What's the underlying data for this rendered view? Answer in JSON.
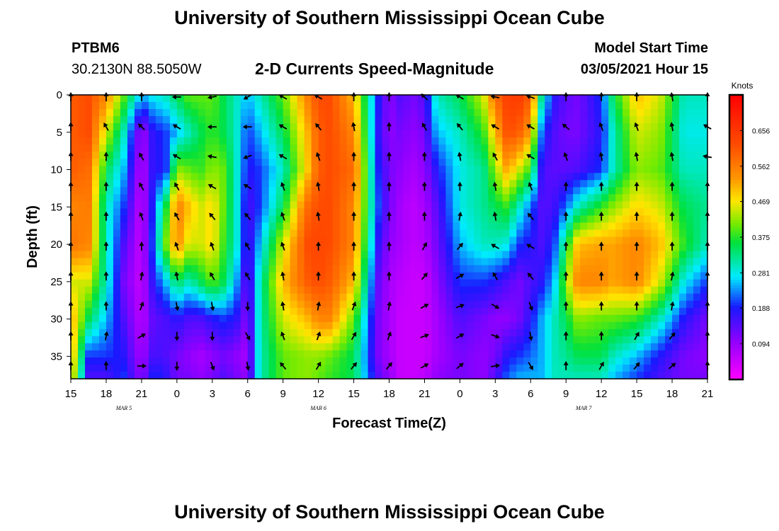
{
  "header": {
    "title": "University of Southern Mississippi Ocean Cube",
    "station": "PTBM6",
    "coordinates": "30.2130N 88.5050W",
    "subtitle": "2-D Currents Speed-Magnitude",
    "start_label": "Model Start Time",
    "start_value": "03/05/2021 Hour 15"
  },
  "footer": {
    "title": "University of Southern Mississippi Ocean Cube"
  },
  "chart_data": {
    "type": "heatmap",
    "title": "2-D Currents Speed-Magnitude",
    "xlabel": "Forecast Time(Z)",
    "ylabel": "Depth (ft)",
    "x_ticks": [
      "15",
      "18",
      "21",
      "0",
      "3",
      "6",
      "9",
      "12",
      "15",
      "18",
      "21",
      "0",
      "3",
      "6",
      "9",
      "12",
      "15",
      "18",
      "21"
    ],
    "x_range_hours": [
      0,
      54
    ],
    "date_labels": [
      {
        "hour": 4.5,
        "label": "MAR 5"
      },
      {
        "hour": 21,
        "label": "MAR 6"
      },
      {
        "hour": 43.5,
        "label": "MAR 7"
      }
    ],
    "y_ticks": [
      0,
      5,
      10,
      15,
      20,
      25,
      30,
      35
    ],
    "y_range_ft": [
      0,
      38
    ],
    "colorbar": {
      "unit": "Knots",
      "range": [
        0,
        0.75
      ],
      "ticks": [
        "0.656",
        "0.562",
        "0.469",
        "0.375",
        "0.281",
        "0.188",
        "0.094"
      ],
      "tick_values": [
        0.656,
        0.562,
        0.469,
        0.375,
        0.281,
        0.188,
        0.094
      ]
    },
    "speed_field": {
      "x_hours": [
        0,
        1.5,
        3,
        4.5,
        6,
        7,
        8,
        9,
        10,
        11,
        12,
        13,
        14,
        15,
        16,
        18,
        20,
        21,
        22,
        24,
        26,
        27,
        28,
        29,
        30,
        31,
        33,
        35,
        36,
        37,
        38,
        39,
        40,
        41,
        42,
        43,
        45,
        46,
        48,
        50,
        52,
        54
      ],
      "depth_ft": [
        0,
        5,
        10,
        15,
        20,
        25,
        30,
        35,
        38
      ],
      "values": [
        [
          0.6,
          0.6,
          0.6,
          0.55,
          0.57,
          0.45,
          0.52,
          0.52,
          0.5
        ],
        [
          0.62,
          0.62,
          0.58,
          0.56,
          0.55,
          0.45,
          0.35,
          0.2,
          0.15
        ],
        [
          0.55,
          0.45,
          0.35,
          0.3,
          0.3,
          0.3,
          0.25,
          0.2,
          0.15
        ],
        [
          0.4,
          0.3,
          0.25,
          0.2,
          0.15,
          0.12,
          0.15,
          0.18,
          0.2
        ],
        [
          0.25,
          0.08,
          0.06,
          0.05,
          0.05,
          0.05,
          0.06,
          0.08,
          0.1
        ],
        [
          0.28,
          0.18,
          0.18,
          0.2,
          0.22,
          0.18,
          0.14,
          0.16,
          0.2
        ],
        [
          0.3,
          0.2,
          0.18,
          0.35,
          0.4,
          0.25,
          0.15,
          0.15,
          0.18
        ],
        [
          0.35,
          0.25,
          0.42,
          0.56,
          0.55,
          0.35,
          0.18,
          0.12,
          0.12
        ],
        [
          0.4,
          0.3,
          0.4,
          0.5,
          0.45,
          0.3,
          0.15,
          0.1,
          0.12
        ],
        [
          0.4,
          0.35,
          0.38,
          0.45,
          0.45,
          0.35,
          0.15,
          0.08,
          0.1
        ],
        [
          0.4,
          0.38,
          0.42,
          0.48,
          0.48,
          0.4,
          0.18,
          0.1,
          0.12
        ],
        [
          0.35,
          0.35,
          0.4,
          0.4,
          0.38,
          0.35,
          0.2,
          0.12,
          0.15
        ],
        [
          0.3,
          0.3,
          0.3,
          0.3,
          0.3,
          0.25,
          0.18,
          0.1,
          0.12
        ],
        [
          0.25,
          0.2,
          0.18,
          0.15,
          0.15,
          0.12,
          0.1,
          0.08,
          0.1
        ],
        [
          0.3,
          0.25,
          0.2,
          0.2,
          0.25,
          0.3,
          0.3,
          0.3,
          0.3
        ],
        [
          0.4,
          0.35,
          0.3,
          0.35,
          0.45,
          0.5,
          0.45,
          0.4,
          0.4
        ],
        [
          0.55,
          0.5,
          0.48,
          0.58,
          0.62,
          0.6,
          0.5,
          0.42,
          0.42
        ],
        [
          0.62,
          0.6,
          0.6,
          0.62,
          0.63,
          0.62,
          0.55,
          0.42,
          0.4
        ],
        [
          0.62,
          0.62,
          0.62,
          0.62,
          0.62,
          0.6,
          0.55,
          0.4,
          0.38
        ],
        [
          0.5,
          0.55,
          0.58,
          0.55,
          0.55,
          0.5,
          0.4,
          0.35,
          0.35
        ],
        [
          0.2,
          0.18,
          0.2,
          0.22,
          0.18,
          0.14,
          0.12,
          0.12,
          0.15
        ],
        [
          0.1,
          0.1,
          0.12,
          0.12,
          0.1,
          0.08,
          0.08,
          0.08,
          0.1
        ],
        [
          0.15,
          0.12,
          0.1,
          0.08,
          0.08,
          0.06,
          0.05,
          0.05,
          0.05
        ],
        [
          0.12,
          0.1,
          0.08,
          0.06,
          0.06,
          0.05,
          0.05,
          0.05,
          0.05
        ],
        [
          0.15,
          0.12,
          0.1,
          0.08,
          0.07,
          0.05,
          0.05,
          0.05,
          0.06
        ],
        [
          0.3,
          0.25,
          0.18,
          0.14,
          0.12,
          0.1,
          0.08,
          0.08,
          0.1
        ],
        [
          0.35,
          0.3,
          0.28,
          0.28,
          0.25,
          0.2,
          0.15,
          0.12,
          0.12
        ],
        [
          0.45,
          0.38,
          0.32,
          0.32,
          0.3,
          0.2,
          0.12,
          0.1,
          0.1
        ],
        [
          0.58,
          0.5,
          0.42,
          0.35,
          0.3,
          0.18,
          0.1,
          0.12,
          0.15
        ],
        [
          0.64,
          0.62,
          0.52,
          0.38,
          0.28,
          0.15,
          0.1,
          0.18,
          0.22
        ],
        [
          0.65,
          0.6,
          0.45,
          0.3,
          0.2,
          0.12,
          0.12,
          0.2,
          0.25
        ],
        [
          0.6,
          0.52,
          0.38,
          0.22,
          0.18,
          0.15,
          0.18,
          0.22,
          0.25
        ],
        [
          0.3,
          0.2,
          0.15,
          0.14,
          0.15,
          0.18,
          0.25,
          0.25,
          0.25
        ],
        [
          0.18,
          0.15,
          0.14,
          0.16,
          0.2,
          0.25,
          0.3,
          0.3,
          0.3
        ],
        [
          0.14,
          0.12,
          0.14,
          0.22,
          0.35,
          0.42,
          0.35,
          0.32,
          0.3
        ],
        [
          0.12,
          0.12,
          0.15,
          0.3,
          0.5,
          0.55,
          0.42,
          0.35,
          0.3
        ],
        [
          0.2,
          0.18,
          0.2,
          0.38,
          0.52,
          0.55,
          0.4,
          0.35,
          0.3
        ],
        [
          0.35,
          0.3,
          0.3,
          0.42,
          0.52,
          0.52,
          0.4,
          0.3,
          0.25
        ],
        [
          0.5,
          0.45,
          0.42,
          0.48,
          0.55,
          0.55,
          0.38,
          0.25,
          0.2
        ],
        [
          0.45,
          0.42,
          0.4,
          0.45,
          0.5,
          0.45,
          0.3,
          0.18,
          0.15
        ],
        [
          0.3,
          0.28,
          0.3,
          0.35,
          0.38,
          0.28,
          0.18,
          0.12,
          0.12
        ],
        [
          0.3,
          0.28,
          0.3,
          0.32,
          0.3,
          0.2,
          0.12,
          0.1,
          0.12
        ]
      ]
    },
    "vector_grid": {
      "x_hours": [
        0,
        3,
        6,
        9,
        12,
        15,
        18,
        21,
        24,
        27,
        30,
        33,
        36,
        39,
        42,
        45,
        48,
        51,
        54
      ],
      "depth_ft": [
        0,
        4,
        8,
        12,
        16,
        20,
        24,
        28,
        32,
        36
      ],
      "direction_deg_from_north": [
        [
          0,
          0,
          0,
          0,
          0,
          0,
          0,
          0,
          0,
          0
        ],
        [
          0,
          -30,
          0,
          0,
          0,
          0,
          0,
          0,
          10,
          0
        ],
        [
          0,
          -45,
          -30,
          -30,
          -20,
          0,
          10,
          20,
          60,
          90
        ],
        [
          -90,
          -60,
          -60,
          -30,
          -30,
          -20,
          -10,
          170,
          180,
          180
        ],
        [
          -100,
          -90,
          -80,
          -60,
          -40,
          -20,
          -30,
          170,
          180,
          160
        ],
        [
          -120,
          -90,
          -110,
          -60,
          -40,
          -30,
          -30,
          180,
          150,
          170
        ],
        [
          -60,
          -60,
          -60,
          -20,
          -20,
          -20,
          -10,
          -10,
          -20,
          -40
        ],
        [
          -60,
          -40,
          -20,
          -10,
          -10,
          0,
          0,
          10,
          20,
          30
        ],
        [
          0,
          -10,
          0,
          0,
          0,
          0,
          0,
          20,
          30,
          40
        ],
        [
          0,
          0,
          0,
          0,
          0,
          0,
          0,
          10,
          20,
          40
        ],
        [
          -45,
          -30,
          0,
          0,
          0,
          30,
          40,
          60,
          70,
          60
        ],
        [
          -60,
          -40,
          -10,
          0,
          10,
          40,
          60,
          70,
          60,
          50
        ],
        [
          -80,
          -60,
          -30,
          -10,
          -10,
          -60,
          -30,
          120,
          110,
          80
        ],
        [
          -70,
          -60,
          -60,
          -20,
          -40,
          -60,
          -40,
          160,
          170,
          150
        ],
        [
          0,
          -50,
          -20,
          0,
          0,
          0,
          0,
          0,
          0,
          0
        ],
        [
          0,
          -20,
          -10,
          0,
          0,
          0,
          0,
          0,
          0,
          30
        ],
        [
          0,
          -20,
          -10,
          0,
          0,
          0,
          0,
          0,
          30,
          40
        ],
        [
          -10,
          -10,
          -10,
          0,
          0,
          0,
          10,
          10,
          40,
          50
        ],
        [
          0,
          -60,
          -80,
          0,
          0,
          0,
          0,
          0,
          0,
          0
        ]
      ]
    }
  }
}
